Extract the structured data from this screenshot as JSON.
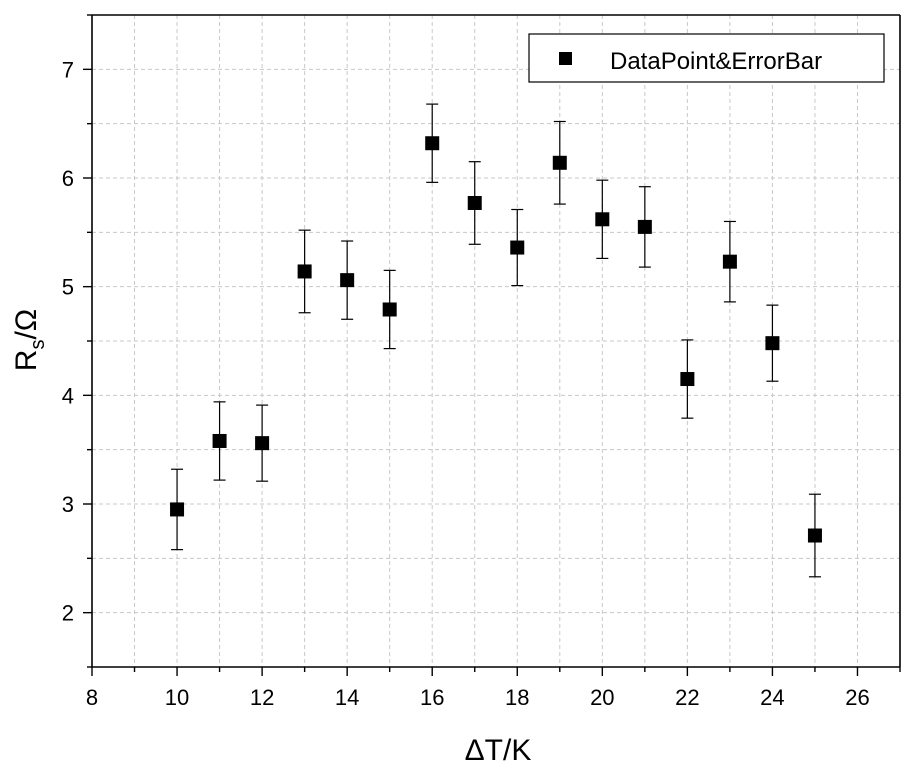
{
  "chart_data": {
    "type": "scatter",
    "xlabel_main": "ΔT/K",
    "ylabel_main": "R",
    "ylabel_sub": "s",
    "ylabel_tail": "/Ω",
    "xlim": [
      8,
      27
    ],
    "ylim": [
      1.5,
      7.5
    ],
    "xticks": [
      8,
      10,
      12,
      14,
      16,
      18,
      20,
      22,
      24,
      26
    ],
    "yticks": [
      2,
      3,
      4,
      5,
      6,
      7
    ],
    "grid": true,
    "legend_position": "top-right",
    "marker_color": "#000000",
    "series": [
      {
        "name": "DataPoint&ErrorBar",
        "marker": "square",
        "points": [
          {
            "x": 10,
            "y": 2.95,
            "err": 0.37
          },
          {
            "x": 11,
            "y": 3.58,
            "err": 0.36
          },
          {
            "x": 12,
            "y": 3.56,
            "err": 0.35
          },
          {
            "x": 13,
            "y": 5.14,
            "err": 0.38
          },
          {
            "x": 14,
            "y": 5.06,
            "err": 0.36
          },
          {
            "x": 15,
            "y": 4.79,
            "err": 0.36
          },
          {
            "x": 16,
            "y": 6.32,
            "err": 0.36
          },
          {
            "x": 17,
            "y": 5.77,
            "err": 0.38
          },
          {
            "x": 18,
            "y": 5.36,
            "err": 0.35
          },
          {
            "x": 19,
            "y": 6.14,
            "err": 0.38
          },
          {
            "x": 20,
            "y": 5.62,
            "err": 0.36
          },
          {
            "x": 21,
            "y": 5.55,
            "err": 0.37
          },
          {
            "x": 22,
            "y": 4.15,
            "err": 0.36
          },
          {
            "x": 23,
            "y": 5.23,
            "err": 0.37
          },
          {
            "x": 24,
            "y": 4.48,
            "err": 0.35
          },
          {
            "x": 25,
            "y": 2.71,
            "err": 0.38
          }
        ]
      }
    ]
  }
}
